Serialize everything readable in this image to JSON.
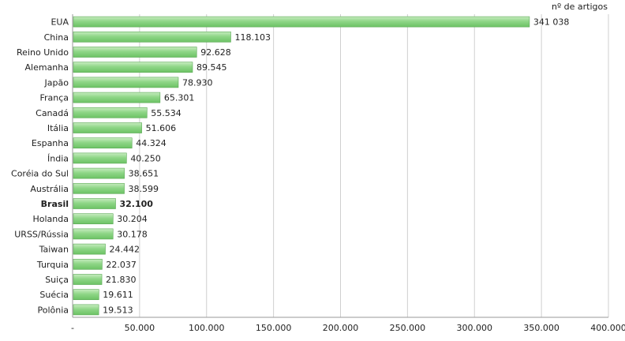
{
  "chart_data": {
    "type": "bar",
    "orientation": "horizontal",
    "unit_label": "nº de artigos",
    "categories": [
      "EUA",
      "China",
      "Reino Unido",
      "Alemanha",
      "Japão",
      "França",
      "Canadá",
      "Itália",
      "Espanha",
      "Índia",
      "Coréia do Sul",
      "Austrália",
      "Brasil",
      "Holanda",
      "URSS/Rússia",
      "Taiwan",
      "Turquia",
      "Suiça",
      "Suécia",
      "Polônia"
    ],
    "values": [
      341038,
      118103,
      92628,
      89545,
      78930,
      65301,
      55534,
      51606,
      44324,
      40250,
      38651,
      38599,
      32100,
      30204,
      30178,
      24442,
      22037,
      21830,
      19611,
      19513
    ],
    "value_labels": [
      "341 038",
      "118.103",
      "92.628",
      "89.545",
      "78.930",
      "65.301",
      "55.534",
      "51.606",
      "44.324",
      "40.250",
      "38.651",
      "38.599",
      "32.100",
      "30.204",
      "30.178",
      "24.442",
      "22.037",
      "21.830",
      "19.611",
      "19.513"
    ],
    "highlight": "Brasil",
    "xlim": [
      0,
      400000
    ],
    "xticks": [
      0,
      50000,
      100000,
      150000,
      200000,
      250000,
      300000,
      350000,
      400000
    ],
    "xtick_labels": [
      "-",
      "50.000",
      "100.000",
      "150.000",
      "200.000",
      "250.000",
      "300.000",
      "350.000",
      "400.000"
    ],
    "grid": true,
    "colors": {
      "bar": "#7ccf76",
      "bar_light": "#b9e6b2",
      "bar_edge": "#5aa954",
      "grid": "#cfcfcf",
      "axis": "#9a9a9a"
    }
  }
}
